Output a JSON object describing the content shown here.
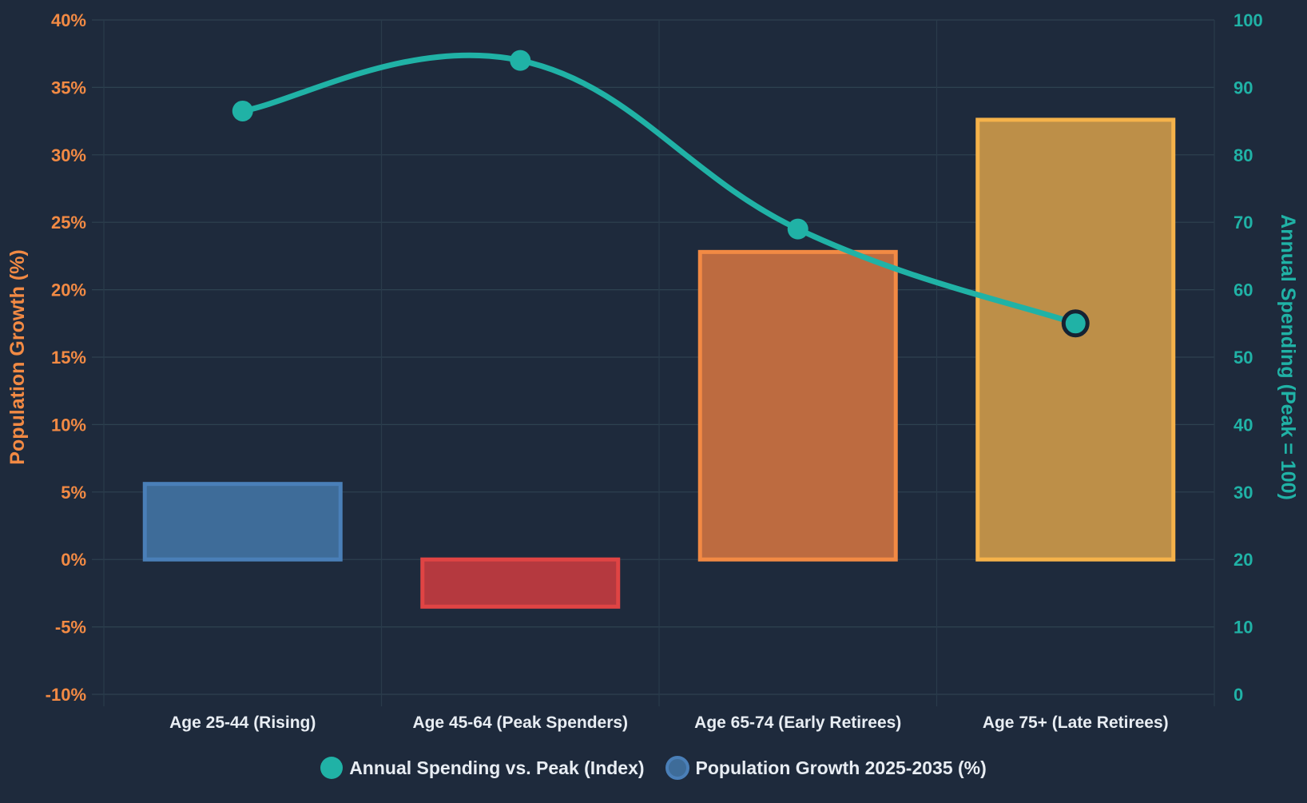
{
  "chart_data": {
    "type": "bar",
    "categories": [
      "Age 25-44 (Rising)",
      "Age 45-64 (Peak Spenders)",
      "Age 65-74 (Early Retirees)",
      "Age 75+ (Late Retirees)"
    ],
    "series": [
      {
        "name": "Population Growth 2025-2035 (%)",
        "type": "bar",
        "axis": "left",
        "values": [
          5.6,
          -3.5,
          22.8,
          32.6
        ],
        "fill_colors": [
          "#3e6c99",
          "#b5393f",
          "#bd6b40",
          "#bd8f48"
        ],
        "border_colors": [
          "#4a7fb8",
          "#e04444",
          "#f28a44",
          "#f5b24a"
        ]
      },
      {
        "name": "Annual Spending vs. Peak (Index)",
        "type": "line",
        "axis": "right",
        "values": [
          86.5,
          94,
          69,
          55
        ],
        "color": "#20b2a6"
      }
    ],
    "y_left": {
      "label": "Population Growth (%)",
      "ylim": [
        -10,
        40
      ],
      "ticks": [
        -10,
        -5,
        0,
        5,
        10,
        15,
        20,
        25,
        30,
        35,
        40
      ],
      "tick_labels": [
        "-10%",
        "-5%",
        "0%",
        "5%",
        "10%",
        "15%",
        "20%",
        "25%",
        "30%",
        "35%",
        "40%"
      ],
      "color": "#f28a44"
    },
    "y_right": {
      "label": "Annual Spending (Peak = 100)",
      "ylim": [
        0,
        100
      ],
      "ticks": [
        0,
        10,
        20,
        30,
        40,
        50,
        60,
        70,
        80,
        90,
        100
      ],
      "tick_labels": [
        "0",
        "10",
        "20",
        "30",
        "40",
        "50",
        "60",
        "70",
        "80",
        "90",
        "100"
      ],
      "color": "#20b2a6"
    },
    "grid": true,
    "legend_position": "bottom",
    "background": "#1e2a3c"
  },
  "legend": {
    "line_label": "Annual Spending vs. Peak (Index)",
    "bar_label": "Population Growth 2025-2035 (%)"
  }
}
